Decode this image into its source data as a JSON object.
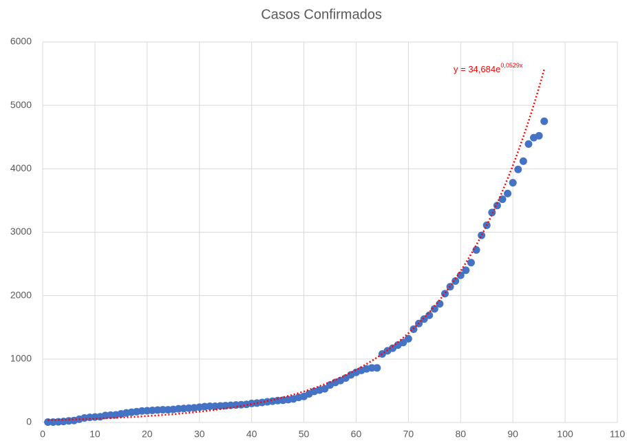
{
  "chart_data": {
    "type": "scatter",
    "title": "Casos Confirmados",
    "x": [
      1,
      2,
      3,
      4,
      5,
      6,
      7,
      8,
      9,
      10,
      11,
      12,
      13,
      14,
      15,
      16,
      17,
      18,
      19,
      20,
      21,
      22,
      23,
      24,
      25,
      26,
      27,
      28,
      29,
      30,
      31,
      32,
      33,
      34,
      35,
      36,
      37,
      38,
      39,
      40,
      41,
      42,
      43,
      44,
      45,
      46,
      47,
      48,
      49,
      50,
      51,
      52,
      53,
      54,
      55,
      56,
      57,
      58,
      59,
      60,
      61,
      62,
      63,
      64,
      65,
      66,
      67,
      68,
      69,
      70,
      71,
      72,
      73,
      74,
      75,
      76,
      77,
      78,
      79,
      80,
      81,
      82,
      83,
      84,
      85,
      86,
      87,
      88,
      89,
      90,
      91,
      92,
      93,
      94,
      95,
      96
    ],
    "values": [
      5,
      5,
      10,
      15,
      25,
      30,
      50,
      70,
      80,
      85,
      90,
      110,
      115,
      120,
      135,
      150,
      160,
      170,
      180,
      185,
      190,
      195,
      200,
      200,
      205,
      215,
      220,
      225,
      230,
      240,
      250,
      255,
      255,
      260,
      265,
      270,
      275,
      280,
      285,
      300,
      305,
      315,
      325,
      335,
      345,
      350,
      360,
      370,
      395,
      410,
      450,
      490,
      510,
      530,
      590,
      630,
      660,
      700,
      750,
      790,
      820,
      845,
      860,
      860,
      1080,
      1130,
      1170,
      1220,
      1260,
      1320,
      1470,
      1560,
      1630,
      1690,
      1790,
      1870,
      2030,
      2140,
      2230,
      2320,
      2400,
      2520,
      2720,
      2950,
      3110,
      3310,
      3420,
      3520,
      3610,
      3780,
      3990,
      4120,
      4390,
      4490,
      4520,
      4750
    ],
    "color": "#4472c4",
    "xlim": [
      0,
      110
    ],
    "xticks": [
      0,
      10,
      20,
      30,
      40,
      50,
      60,
      70,
      80,
      90,
      100,
      110
    ],
    "ylim": [
      0,
      6000
    ],
    "yticks": [
      0,
      1000,
      2000,
      3000,
      4000,
      5000,
      6000
    ],
    "grid": true,
    "trendline": {
      "type": "exponential",
      "coefficient": 34.684,
      "exponent": 0.0529,
      "color": "#ff0000",
      "label": "y = 34,684e",
      "label_exponent": "0,0529x"
    }
  }
}
